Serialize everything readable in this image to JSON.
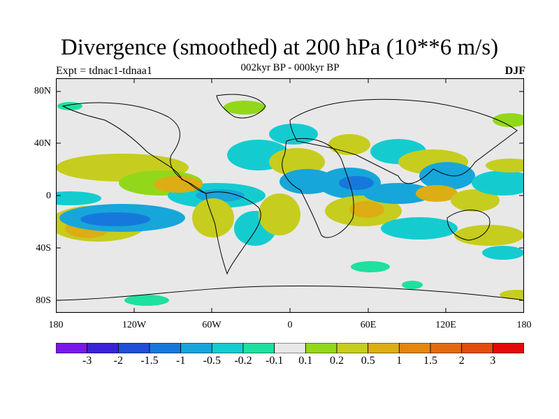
{
  "title": "Divergence (smoothed) at 200 hPa (10**6 m/s)",
  "subtitle": "002kyr BP - 000kyr BP",
  "left_label": "Expt = tdnac1-tdnaa1",
  "right_label": "DJF",
  "lat_ticks": [
    "80N",
    "40N",
    "0",
    "40S",
    "80S"
  ],
  "lon_ticks": [
    "180",
    "120W",
    "60W",
    "0",
    "60E",
    "120E",
    "180"
  ],
  "colorbar": {
    "colors": [
      "#7a18e8",
      "#3a22d8",
      "#1f4fd6",
      "#1678dd",
      "#16a6da",
      "#14ccd0",
      "#1ee0a0",
      "#e8e8e8",
      "#93d71b",
      "#c6cd1f",
      "#dcad14",
      "#e4860f",
      "#e46a0f",
      "#e24c0f",
      "#e40a0a"
    ],
    "labels": [
      "-3",
      "-2",
      "-1.5",
      "-1",
      "-0.5",
      "-0.2",
      "-0.1",
      "0.1",
      "0.2",
      "0.5",
      "1",
      "1.5",
      "2",
      "3"
    ]
  }
}
